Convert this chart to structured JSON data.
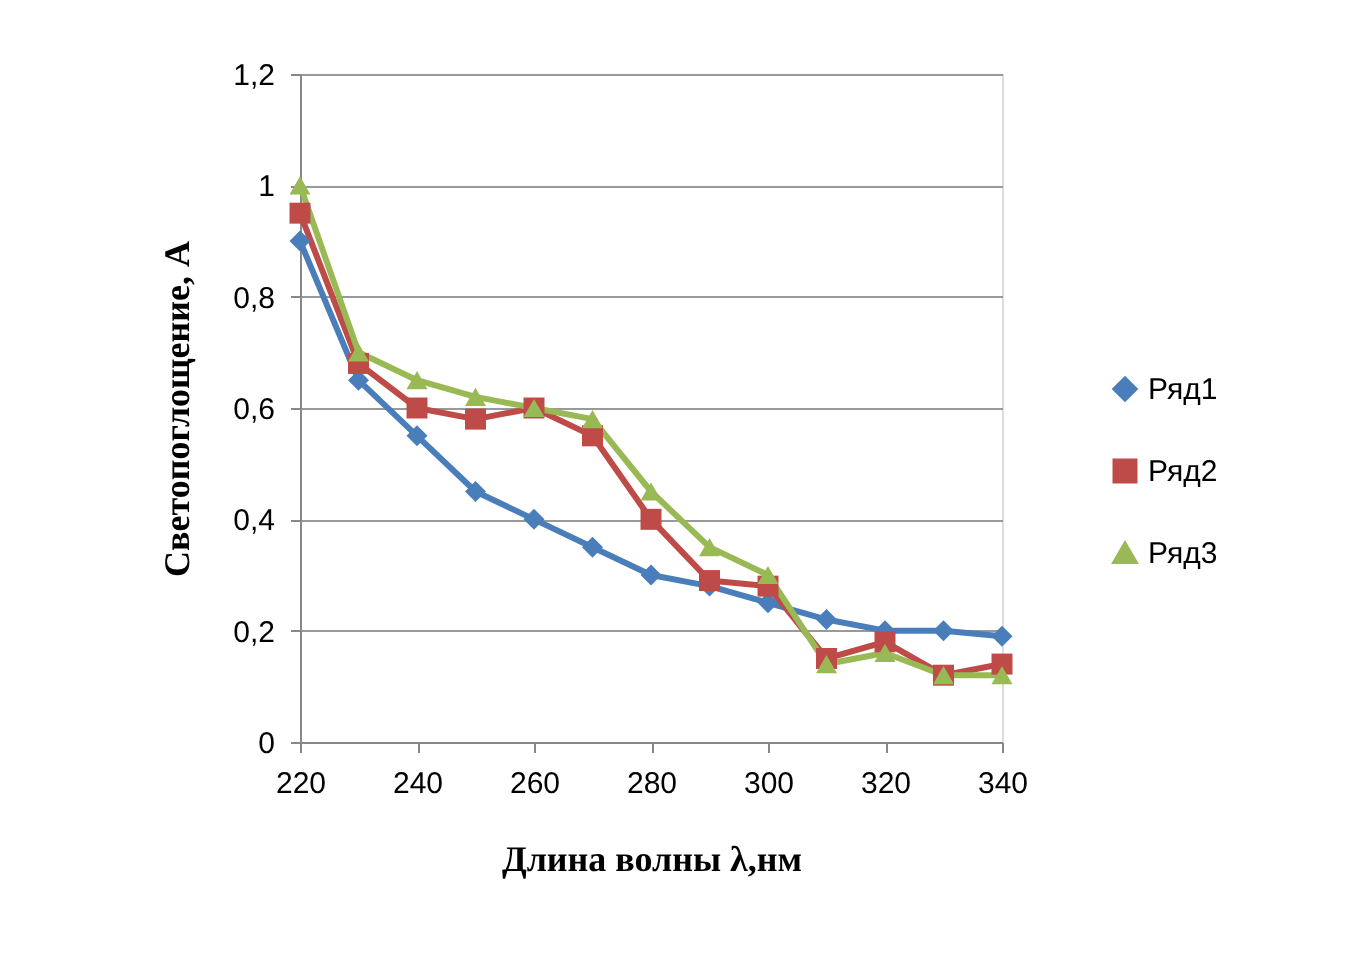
{
  "chart_data": {
    "type": "line",
    "xlabel": "Длина волны λ,нм",
    "ylabel": "Светопоглощение, А",
    "x": [
      220,
      230,
      240,
      250,
      260,
      270,
      280,
      290,
      300,
      310,
      320,
      330,
      340
    ],
    "series": [
      {
        "name": "Ряд1",
        "color": "#4a7ebb",
        "marker": "diamond",
        "values": [
          0.9,
          0.65,
          0.55,
          0.45,
          0.4,
          0.35,
          0.3,
          0.28,
          0.25,
          0.22,
          0.2,
          0.2,
          0.19
        ]
      },
      {
        "name": "Ряд2",
        "color": "#be4b48",
        "marker": "square",
        "values": [
          0.95,
          0.68,
          0.6,
          0.58,
          0.6,
          0.55,
          0.4,
          0.29,
          0.28,
          0.15,
          0.18,
          0.12,
          0.14
        ]
      },
      {
        "name": "Ряд3",
        "color": "#98b954",
        "marker": "triangle",
        "values": [
          1.0,
          0.7,
          0.65,
          0.62,
          0.6,
          0.58,
          0.45,
          0.35,
          0.3,
          0.14,
          0.16,
          0.12,
          0.12
        ]
      }
    ],
    "xlim": [
      220,
      340
    ],
    "xticks": [
      220,
      240,
      260,
      280,
      300,
      320,
      340
    ],
    "ylim": [
      0,
      1.2
    ],
    "yticks": [
      0,
      {
        "value": 0.2,
        "label": "0,2"
      },
      {
        "value": 0.4,
        "label": "0,4"
      },
      {
        "value": 0.6,
        "label": "0,6"
      },
      {
        "value": 0.8,
        "label": "0,8"
      },
      1,
      {
        "value": 1.2,
        "label": "1,2"
      }
    ],
    "grid": "y",
    "legend": "right",
    "line_style": "solid"
  }
}
